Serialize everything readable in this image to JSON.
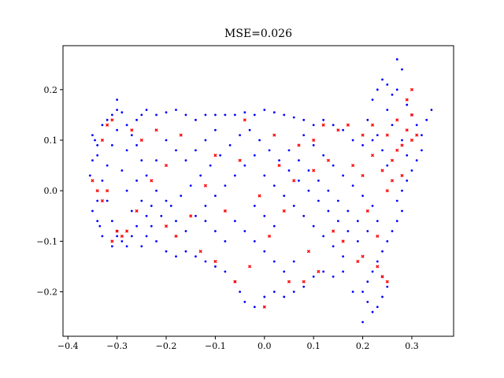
{
  "chart_data": {
    "type": "scatter",
    "title": "MSE=0.026",
    "xlabel": "",
    "ylabel": "",
    "xlim": [
      -0.41,
      0.385
    ],
    "ylim": [
      -0.288,
      0.287
    ],
    "x_ticks": [
      {
        "value": -0.4,
        "label": "−0.4"
      },
      {
        "value": -0.3,
        "label": "−0.3"
      },
      {
        "value": -0.2,
        "label": "−0.2"
      },
      {
        "value": -0.1,
        "label": "−0.1"
      },
      {
        "value": 0.0,
        "label": "0.0"
      },
      {
        "value": 0.1,
        "label": "0.1"
      },
      {
        "value": 0.2,
        "label": "0.2"
      },
      {
        "value": 0.3,
        "label": "0.3"
      }
    ],
    "y_ticks": [
      {
        "value": -0.2,
        "label": "−0.2"
      },
      {
        "value": -0.1,
        "label": "−0.1"
      },
      {
        "value": 0.0,
        "label": "0.0"
      },
      {
        "value": 0.1,
        "label": "0.1"
      },
      {
        "value": 0.2,
        "label": "0.2"
      }
    ],
    "grid": false,
    "legend": "none",
    "series": [
      {
        "color": "#0000ff",
        "marker": "dot",
        "points": [
          [
            -0.355,
            0.03
          ],
          [
            -0.35,
            0.06
          ],
          [
            -0.345,
            0.1
          ],
          [
            -0.34,
            -0.02
          ],
          [
            -0.35,
            -0.04
          ],
          [
            -0.34,
            -0.06
          ],
          [
            -0.335,
            -0.07
          ],
          [
            -0.33,
            0.13
          ],
          [
            -0.32,
            0.14
          ],
          [
            -0.31,
            0.15
          ],
          [
            -0.3,
            0.16
          ],
          [
            -0.29,
            0.155
          ],
          [
            -0.3,
            0.12
          ],
          [
            -0.31,
            0.09
          ],
          [
            -0.32,
            0.05
          ],
          [
            -0.33,
            0.02
          ],
          [
            -0.32,
            -0.02
          ],
          [
            -0.31,
            -0.06
          ],
          [
            -0.3,
            -0.09
          ],
          [
            -0.29,
            -0.1
          ],
          [
            -0.28,
            -0.11
          ],
          [
            -0.27,
            -0.09
          ],
          [
            -0.26,
            -0.07
          ],
          [
            -0.27,
            -0.04
          ],
          [
            -0.28,
            0.0
          ],
          [
            -0.29,
            0.04
          ],
          [
            -0.28,
            0.08
          ],
          [
            -0.27,
            0.11
          ],
          [
            -0.26,
            0.14
          ],
          [
            -0.25,
            0.15
          ],
          [
            -0.24,
            0.16
          ],
          [
            -0.22,
            0.15
          ],
          [
            -0.2,
            0.155
          ],
          [
            -0.18,
            0.16
          ],
          [
            -0.16,
            0.15
          ],
          [
            -0.14,
            0.14
          ],
          [
            -0.12,
            0.15
          ],
          [
            -0.1,
            0.15
          ],
          [
            -0.08,
            0.15
          ],
          [
            -0.06,
            0.15
          ],
          [
            -0.04,
            0.155
          ],
          [
            -0.02,
            0.15
          ],
          [
            0.0,
            0.16
          ],
          [
            0.02,
            0.155
          ],
          [
            0.04,
            0.15
          ],
          [
            0.06,
            0.145
          ],
          [
            0.08,
            0.14
          ],
          [
            0.1,
            0.13
          ],
          [
            0.12,
            0.14
          ],
          [
            0.14,
            0.13
          ],
          [
            0.16,
            0.12
          ],
          [
            0.18,
            0.1
          ],
          [
            0.2,
            0.09
          ],
          [
            0.22,
            0.1
          ],
          [
            0.21,
            0.14
          ],
          [
            0.22,
            0.18
          ],
          [
            0.23,
            0.2
          ],
          [
            0.24,
            0.22
          ],
          [
            0.25,
            0.21
          ],
          [
            0.26,
            0.19
          ],
          [
            0.27,
            0.2
          ],
          [
            0.28,
            0.24
          ],
          [
            0.27,
            0.26
          ],
          [
            0.29,
            0.17
          ],
          [
            0.3,
            0.15
          ],
          [
            0.31,
            0.13
          ],
          [
            0.32,
            0.11
          ],
          [
            0.33,
            0.14
          ],
          [
            0.34,
            0.16
          ],
          [
            0.32,
            0.08
          ],
          [
            0.31,
            0.06
          ],
          [
            0.3,
            0.04
          ],
          [
            0.29,
            0.02
          ],
          [
            0.28,
            0.0
          ],
          [
            0.27,
            -0.02
          ],
          [
            0.28,
            -0.04
          ],
          [
            0.27,
            -0.06
          ],
          [
            0.26,
            -0.08
          ],
          [
            0.25,
            -0.1
          ],
          [
            0.24,
            -0.12
          ],
          [
            0.23,
            -0.14
          ],
          [
            0.22,
            -0.16
          ],
          [
            0.21,
            -0.18
          ],
          [
            0.2,
            -0.2
          ],
          [
            0.21,
            -0.22
          ],
          [
            0.22,
            -0.24
          ],
          [
            0.23,
            -0.23
          ],
          [
            0.24,
            -0.21
          ],
          [
            0.25,
            -0.19
          ],
          [
            0.24,
            -0.17
          ],
          [
            0.2,
            -0.26
          ],
          [
            0.18,
            -0.2
          ],
          [
            0.16,
            -0.16
          ],
          [
            0.14,
            -0.17
          ],
          [
            0.12,
            -0.16
          ],
          [
            0.1,
            -0.17
          ],
          [
            0.08,
            -0.19
          ],
          [
            0.06,
            -0.2
          ],
          [
            0.04,
            -0.21
          ],
          [
            0.02,
            -0.2
          ],
          [
            0.0,
            -0.21
          ],
          [
            -0.02,
            -0.23
          ],
          [
            -0.04,
            -0.22
          ],
          [
            -0.05,
            -0.2
          ],
          [
            -0.06,
            -0.18
          ],
          [
            -0.08,
            -0.16
          ],
          [
            -0.1,
            -0.15
          ],
          [
            -0.12,
            -0.14
          ],
          [
            -0.14,
            -0.13
          ],
          [
            -0.16,
            -0.12
          ],
          [
            -0.18,
            -0.13
          ],
          [
            -0.2,
            -0.12
          ],
          [
            -0.22,
            -0.1
          ],
          [
            -0.24,
            -0.09
          ],
          [
            -0.25,
            -0.11
          ],
          [
            -0.23,
            -0.07
          ],
          [
            -0.21,
            -0.05
          ],
          [
            -0.19,
            -0.03
          ],
          [
            -0.17,
            -0.01
          ],
          [
            -0.15,
            0.01
          ],
          [
            -0.13,
            0.03
          ],
          [
            -0.11,
            0.05
          ],
          [
            -0.09,
            0.07
          ],
          [
            -0.07,
            0.09
          ],
          [
            -0.05,
            0.11
          ],
          [
            -0.03,
            0.12
          ],
          [
            -0.01,
            0.1
          ],
          [
            0.01,
            0.08
          ],
          [
            0.03,
            0.06
          ],
          [
            0.05,
            0.04
          ],
          [
            0.07,
            0.02
          ],
          [
            0.09,
            0.0
          ],
          [
            0.11,
            -0.02
          ],
          [
            0.13,
            -0.04
          ],
          [
            0.15,
            -0.06
          ],
          [
            0.17,
            -0.08
          ],
          [
            0.19,
            -0.1
          ],
          [
            0.21,
            -0.08
          ],
          [
            0.23,
            -0.06
          ],
          [
            0.22,
            -0.03
          ],
          [
            0.2,
            -0.01
          ],
          [
            0.18,
            0.01
          ],
          [
            0.16,
            0.03
          ],
          [
            0.14,
            0.05
          ],
          [
            0.12,
            0.07
          ],
          [
            0.1,
            0.09
          ],
          [
            0.08,
            0.11
          ],
          [
            -0.2,
            0.1
          ],
          [
            -0.18,
            0.08
          ],
          [
            -0.16,
            0.06
          ],
          [
            -0.14,
            0.08
          ],
          [
            -0.12,
            0.1
          ],
          [
            -0.1,
            0.12
          ],
          [
            -0.22,
            0.06
          ],
          [
            -0.24,
            0.03
          ],
          [
            -0.22,
            0.0
          ],
          [
            -0.2,
            -0.02
          ],
          [
            -0.18,
            -0.06
          ],
          [
            -0.16,
            -0.08
          ],
          [
            -0.14,
            -0.05
          ],
          [
            -0.12,
            -0.03
          ],
          [
            -0.1,
            -0.01
          ],
          [
            -0.08,
            0.01
          ],
          [
            -0.06,
            0.03
          ],
          [
            -0.04,
            0.05
          ],
          [
            -0.02,
            0.07
          ],
          [
            0.0,
            0.03
          ],
          [
            0.02,
            0.01
          ],
          [
            0.04,
            -0.01
          ],
          [
            0.06,
            -0.03
          ],
          [
            0.08,
            -0.05
          ],
          [
            0.1,
            -0.07
          ],
          [
            0.12,
            -0.09
          ],
          [
            0.14,
            -0.11
          ],
          [
            0.16,
            -0.13
          ],
          [
            -0.06,
            -0.06
          ],
          [
            -0.04,
            -0.08
          ],
          [
            -0.02,
            -0.1
          ],
          [
            0.0,
            -0.12
          ],
          [
            0.02,
            -0.14
          ],
          [
            0.04,
            -0.16
          ],
          [
            0.06,
            -0.14
          ],
          [
            -0.08,
            -0.1
          ],
          [
            -0.1,
            -0.08
          ],
          [
            -0.12,
            -0.06
          ],
          [
            0.0,
            -0.05
          ],
          [
            0.02,
            -0.07
          ],
          [
            -0.02,
            -0.03
          ],
          [
            0.05,
            0.08
          ],
          [
            0.07,
            0.06
          ],
          [
            0.09,
            0.04
          ],
          [
            0.11,
            0.02
          ],
          [
            0.13,
            0.0
          ],
          [
            0.15,
            -0.02
          ],
          [
            0.17,
            -0.04
          ],
          [
            0.19,
            -0.06
          ],
          [
            0.25,
            0.05
          ],
          [
            0.24,
            0.08
          ],
          [
            0.23,
            0.11
          ],
          [
            0.26,
            0.13
          ],
          [
            0.25,
            0.16
          ],
          [
            0.28,
            0.1
          ],
          [
            0.29,
            0.07
          ],
          [
            -0.33,
            -0.09
          ],
          [
            -0.3,
            -0.08
          ],
          [
            -0.31,
            -0.11
          ],
          [
            -0.34,
            0.07
          ],
          [
            -0.35,
            0.11
          ],
          [
            -0.34,
            0.09
          ],
          [
            -0.3,
            0.18
          ],
          [
            -0.28,
            0.13
          ],
          [
            -0.26,
            0.09
          ],
          [
            -0.25,
            0.06
          ],
          [
            -0.26,
            0.02
          ],
          [
            -0.25,
            -0.02
          ],
          [
            -0.24,
            -0.05
          ],
          [
            -0.23,
            -0.03
          ]
        ]
      },
      {
        "color": "#ff0000",
        "marker": "x",
        "points": [
          [
            -0.35,
            0.02
          ],
          [
            -0.34,
            0.0
          ],
          [
            -0.33,
            0.1
          ],
          [
            -0.32,
            0.13
          ],
          [
            -0.31,
            0.14
          ],
          [
            -0.3,
            -0.08
          ],
          [
            -0.29,
            -0.09
          ],
          [
            -0.31,
            -0.1
          ],
          [
            -0.28,
            -0.08
          ],
          [
            -0.27,
            0.12
          ],
          [
            -0.25,
            0.1
          ],
          [
            -0.22,
            0.12
          ],
          [
            -0.2,
            0.05
          ],
          [
            -0.17,
            0.11
          ],
          [
            -0.15,
            -0.05
          ],
          [
            -0.13,
            -0.12
          ],
          [
            -0.1,
            0.07
          ],
          [
            -0.08,
            -0.04
          ],
          [
            -0.05,
            0.06
          ],
          [
            -0.03,
            -0.15
          ],
          [
            0.0,
            -0.23
          ],
          [
            -0.01,
            -0.01
          ],
          [
            0.02,
            0.11
          ],
          [
            0.04,
            -0.04
          ],
          [
            0.05,
            -0.18
          ],
          [
            0.07,
            0.09
          ],
          [
            0.09,
            -0.12
          ],
          [
            0.1,
            0.1
          ],
          [
            0.11,
            -0.16
          ],
          [
            0.13,
            0.06
          ],
          [
            0.15,
            0.12
          ],
          [
            0.16,
            -0.1
          ],
          [
            0.18,
            0.05
          ],
          [
            0.2,
            0.03
          ],
          [
            0.21,
            -0.04
          ],
          [
            0.22,
            0.07
          ],
          [
            0.23,
            -0.09
          ],
          [
            0.24,
            0.04
          ],
          [
            0.25,
            0.11
          ],
          [
            0.26,
            0.06
          ],
          [
            0.27,
            0.14
          ],
          [
            0.28,
            0.09
          ],
          [
            0.29,
            0.12
          ],
          [
            0.3,
            0.1
          ],
          [
            0.31,
            0.11
          ],
          [
            0.3,
            0.15
          ],
          [
            0.29,
            0.18
          ],
          [
            0.3,
            0.2
          ],
          [
            0.24,
            -0.17
          ],
          [
            0.23,
            -0.15
          ],
          [
            0.25,
            -0.18
          ],
          [
            0.2,
            -0.13
          ],
          [
            0.19,
            -0.14
          ],
          [
            0.14,
            -0.08
          ],
          [
            0.12,
            0.13
          ],
          [
            0.08,
            -0.18
          ],
          [
            0.06,
            0.02
          ],
          [
            -0.06,
            -0.18
          ],
          [
            -0.12,
            0.01
          ],
          [
            -0.18,
            -0.09
          ],
          [
            -0.23,
            0.02
          ],
          [
            -0.26,
            -0.04
          ],
          [
            -0.32,
            0.0
          ],
          [
            -0.33,
            -0.02
          ],
          [
            0.26,
            0.02
          ],
          [
            0.27,
            0.08
          ],
          [
            0.28,
            0.03
          ],
          [
            0.25,
            0.0
          ],
          [
            0.22,
            0.13
          ],
          [
            0.2,
            0.11
          ],
          [
            -0.2,
            -0.07
          ],
          [
            -0.1,
            -0.14
          ],
          [
            0.03,
            0.05
          ],
          [
            0.1,
            0.04
          ],
          [
            -0.04,
            0.14
          ],
          [
            0.17,
            0.13
          ],
          [
            0.01,
            -0.09
          ]
        ]
      }
    ]
  }
}
